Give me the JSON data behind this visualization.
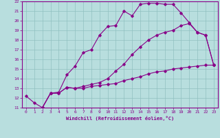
{
  "xlabel": "Windchill (Refroidissement éolien,°C)",
  "xlim": [
    -0.5,
    23.5
  ],
  "ylim": [
    11,
    22
  ],
  "xticks": [
    0,
    1,
    2,
    3,
    4,
    5,
    6,
    7,
    8,
    9,
    10,
    11,
    12,
    13,
    14,
    15,
    16,
    17,
    18,
    19,
    20,
    21,
    22,
    23
  ],
  "yticks": [
    11,
    12,
    13,
    14,
    15,
    16,
    17,
    18,
    19,
    20,
    21,
    22
  ],
  "bg_color": "#b8dede",
  "line_color": "#880088",
  "grid_color": "#90c0c0",
  "line1_x": [
    0,
    1,
    2,
    3,
    4,
    5,
    6,
    7,
    8,
    9,
    10,
    11,
    12,
    13,
    14,
    15,
    16,
    17,
    18,
    19,
    20,
    21,
    22,
    23
  ],
  "line1_y": [
    12.2,
    11.5,
    11.0,
    12.5,
    12.6,
    14.4,
    15.3,
    16.7,
    17.0,
    18.5,
    19.4,
    19.5,
    21.0,
    20.5,
    21.7,
    21.8,
    21.8,
    21.7,
    21.7,
    20.8,
    19.8,
    18.8,
    18.5,
    15.4
  ],
  "line2_x": [
    2,
    3,
    4,
    5,
    6,
    7,
    8,
    9,
    10,
    11,
    12,
    13,
    14,
    15,
    16,
    17,
    18,
    19,
    20,
    21,
    22,
    23
  ],
  "line2_y": [
    11.0,
    12.5,
    12.5,
    13.1,
    13.0,
    13.0,
    13.2,
    13.3,
    13.4,
    13.5,
    13.8,
    14.0,
    14.2,
    14.5,
    14.7,
    14.8,
    15.0,
    15.1,
    15.2,
    15.3,
    15.4,
    15.4
  ],
  "line3_x": [
    2,
    3,
    4,
    5,
    6,
    7,
    8,
    9,
    10,
    11,
    12,
    13,
    14,
    15,
    16,
    17,
    18,
    19,
    20,
    21,
    22,
    23
  ],
  "line3_y": [
    11.0,
    12.5,
    12.5,
    13.1,
    13.0,
    13.2,
    13.4,
    13.6,
    14.0,
    14.8,
    15.5,
    16.5,
    17.3,
    18.0,
    18.5,
    18.8,
    19.0,
    19.5,
    19.7,
    18.8,
    18.5,
    15.4
  ]
}
